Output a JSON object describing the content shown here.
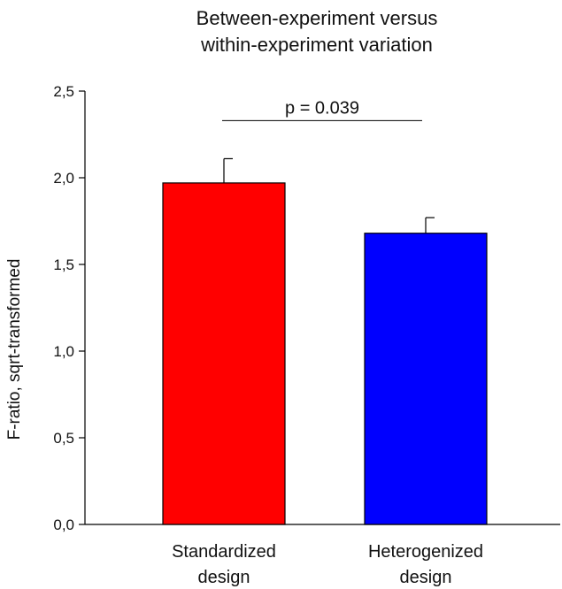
{
  "chart_data": {
    "type": "bar",
    "title_lines": [
      "Between-experiment versus",
      "within-experiment variation"
    ],
    "ylabel": "F-ratio, sqrt-transformed",
    "xlabel": "",
    "ylim": [
      0,
      2.5
    ],
    "yticks": [
      0.0,
      0.5,
      1.0,
      1.5,
      2.0,
      2.5
    ],
    "ytick_labels": [
      "0,0",
      "0,5",
      "1,0",
      "1,5",
      "2,0",
      "2,5"
    ],
    "grid": false,
    "categories": [
      {
        "lines": [
          "Standardized",
          "design"
        ]
      },
      {
        "lines": [
          "Heterogenized",
          "design"
        ]
      }
    ],
    "values": [
      1.97,
      1.68
    ],
    "error_upper": [
      0.14,
      0.09
    ],
    "colors": [
      "#ff0000",
      "#0000ff"
    ],
    "annotation": {
      "text": "p = 0.039",
      "y_level": 2.33,
      "between_categories": [
        0,
        1
      ]
    }
  }
}
